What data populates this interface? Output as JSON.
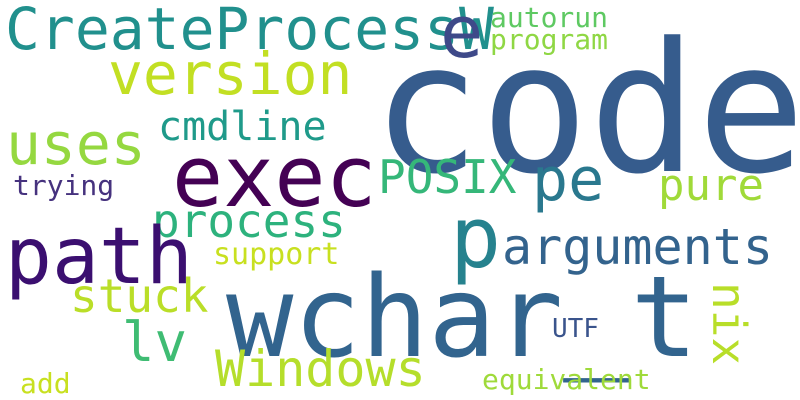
{
  "words": {
    "code": "code",
    "wchar_t": "wchar_t",
    "exec": "exec",
    "path": "path",
    "CreateProcessW": "CreateProcessW",
    "version": "version",
    "uses": "uses",
    "arguments": "arguments",
    "process": "process",
    "stuck": "stuck",
    "Windows": "Windows",
    "pe": "pe",
    "POSIX": "POSIX",
    "cmdline": "cmdline",
    "pure": "pure",
    "lv": "lv",
    "p": "p",
    "e": "e",
    "autorun": "autorun",
    "program": "program",
    "trying": "trying",
    "support": "support",
    "UTF": "UTF",
    "add": "add",
    "equivalent": "equivalent",
    "nix": "nix"
  },
  "colors": {
    "background": "#ffffff",
    "palette": "viridis"
  }
}
